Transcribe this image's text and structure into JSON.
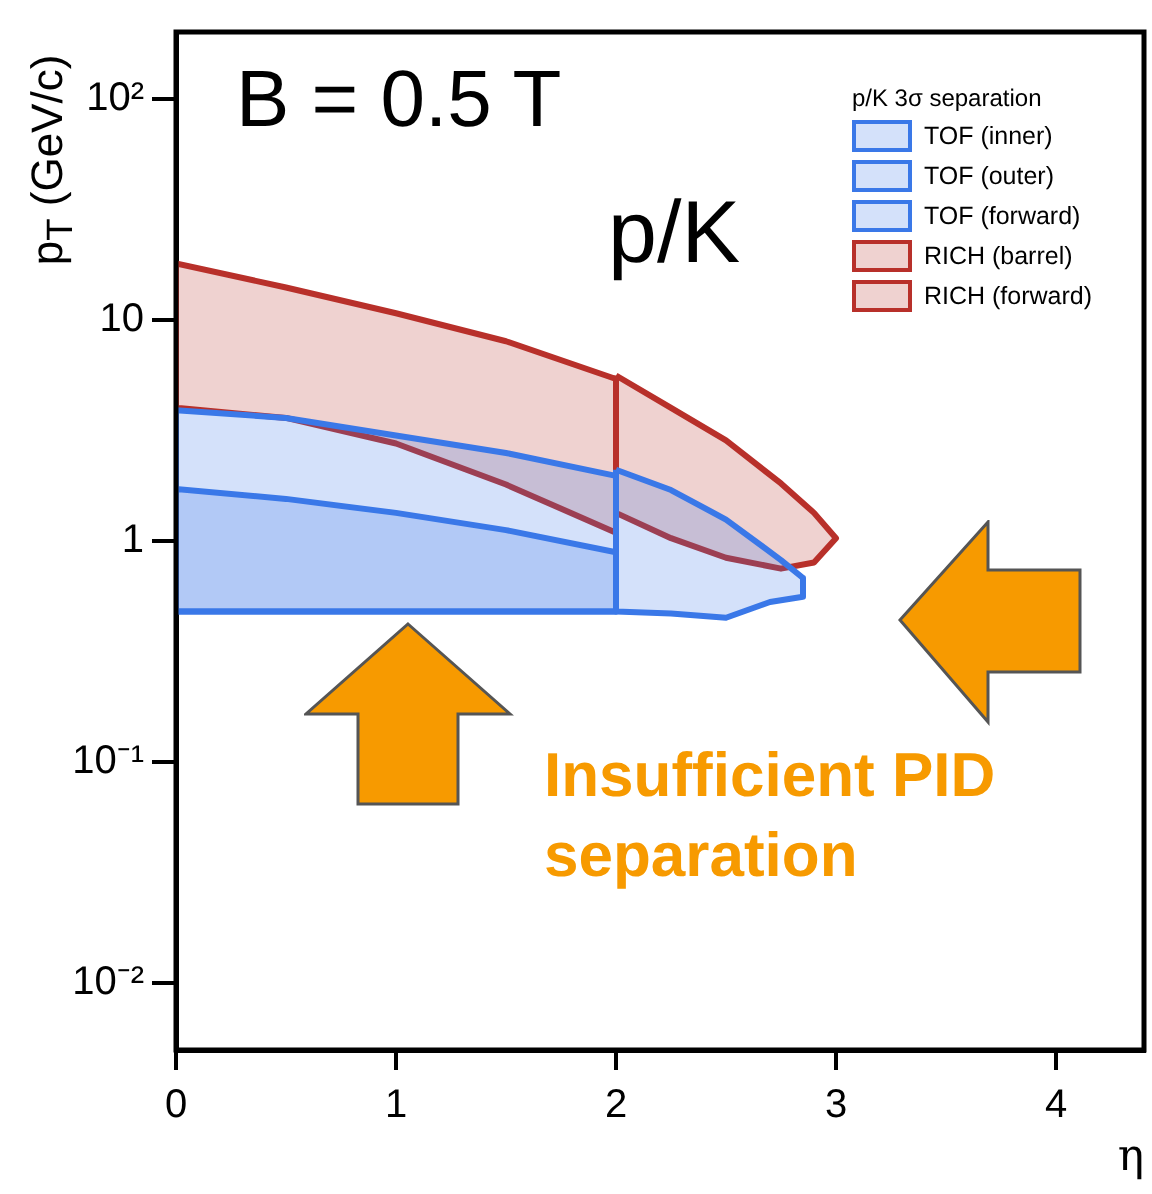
{
  "chart_data": {
    "type": "area",
    "xlabel": "η",
    "ylabel": "p$_{T}$ (GeV/c)",
    "legend_title": "p/K 3σ separation",
    "annotations": [
      "B = 0.5 T",
      "p/K",
      "Insufficient PID separation"
    ],
    "series": [
      {
        "name": "TOF (inner)",
        "color": "#3a78e8",
        "x": [
          0,
          0.5,
          1,
          1.5,
          2,
          2,
          0
        ],
        "values": [
          1.72,
          1.55,
          1.34,
          1.12,
          0.89,
          0.48,
          0.48
        ]
      },
      {
        "name": "TOF (outer)",
        "color": "#3a78e8",
        "x": [
          0,
          0.5,
          1,
          1.5,
          2,
          2,
          0
        ],
        "values": [
          3.9,
          3.6,
          3.0,
          2.5,
          1.97,
          0.48,
          0.48
        ]
      },
      {
        "name": "TOF (forward)",
        "color": "#3a78e8",
        "x": [
          2,
          2.25,
          2.5,
          2.75,
          2.85,
          2.85,
          2.7,
          2.5,
          2.25,
          2
        ],
        "values": [
          2.1,
          1.7,
          1.25,
          0.82,
          0.68,
          0.56,
          0.53,
          0.45,
          0.47,
          0.48
        ]
      },
      {
        "name": "RICH (barrel)",
        "color": "#b8302a",
        "x": [
          0,
          0.5,
          1,
          1.5,
          2,
          2,
          1.5,
          1,
          0.5,
          0
        ],
        "values": [
          18,
          14,
          10.7,
          8,
          5.4,
          1.09,
          1.8,
          2.76,
          3.6,
          4.0
        ]
      },
      {
        "name": "RICH (forward)",
        "color": "#b8302a",
        "x": [
          2,
          2.25,
          2.5,
          2.75,
          2.9,
          3.0,
          2.9,
          2.75,
          2.5,
          2.25,
          2
        ],
        "values": [
          5.6,
          4.0,
          2.85,
          1.82,
          1.34,
          1.03,
          0.8,
          0.75,
          0.84,
          1.03,
          1.34
        ]
      }
    ],
    "xlim": [
      0,
      4.4
    ],
    "xticks": [
      0,
      1,
      2,
      3,
      4
    ],
    "ylim": [
      0.005,
      200
    ],
    "yticks": [
      {
        "value": 0.01,
        "label": "10⁻²"
      },
      {
        "value": 0.1,
        "label": "10⁻¹"
      },
      1,
      10,
      {
        "value": 100,
        "label": "10²"
      }
    ],
    "log": "y",
    "legend": "top right"
  }
}
